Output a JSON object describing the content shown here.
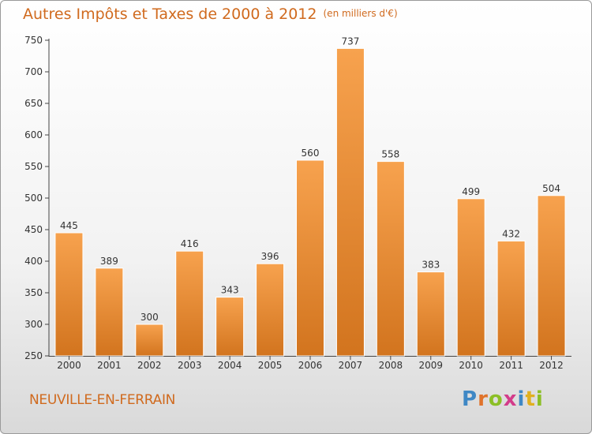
{
  "header": {
    "title": "Autres Impôts et Taxes de 2000 à 2012",
    "unit": "(en milliers d'€)"
  },
  "footer": {
    "city": "NEUVILLE-EN-FERRAIN",
    "logo": [
      "P",
      "r",
      "o",
      "x",
      "i",
      "t",
      "i"
    ]
  },
  "colors": {
    "bar_light": "#f7a24e",
    "bar_dark": "#d2741e",
    "title": "#d06a1e"
  },
  "chart_data": {
    "type": "bar",
    "title": "Autres Impôts et Taxes de 2000 à 2012",
    "subtitle": "(en milliers d'€)",
    "categories": [
      "2000",
      "2001",
      "2002",
      "2003",
      "2004",
      "2005",
      "2006",
      "2007",
      "2008",
      "2009",
      "2010",
      "2011",
      "2012"
    ],
    "values": [
      445,
      389,
      300,
      416,
      343,
      396,
      560,
      737,
      558,
      383,
      499,
      432,
      504
    ],
    "ylim": [
      250,
      750
    ],
    "yticks": [
      250,
      300,
      350,
      400,
      450,
      500,
      550,
      600,
      650,
      700,
      750
    ],
    "grid": false,
    "data_labels": true
  }
}
